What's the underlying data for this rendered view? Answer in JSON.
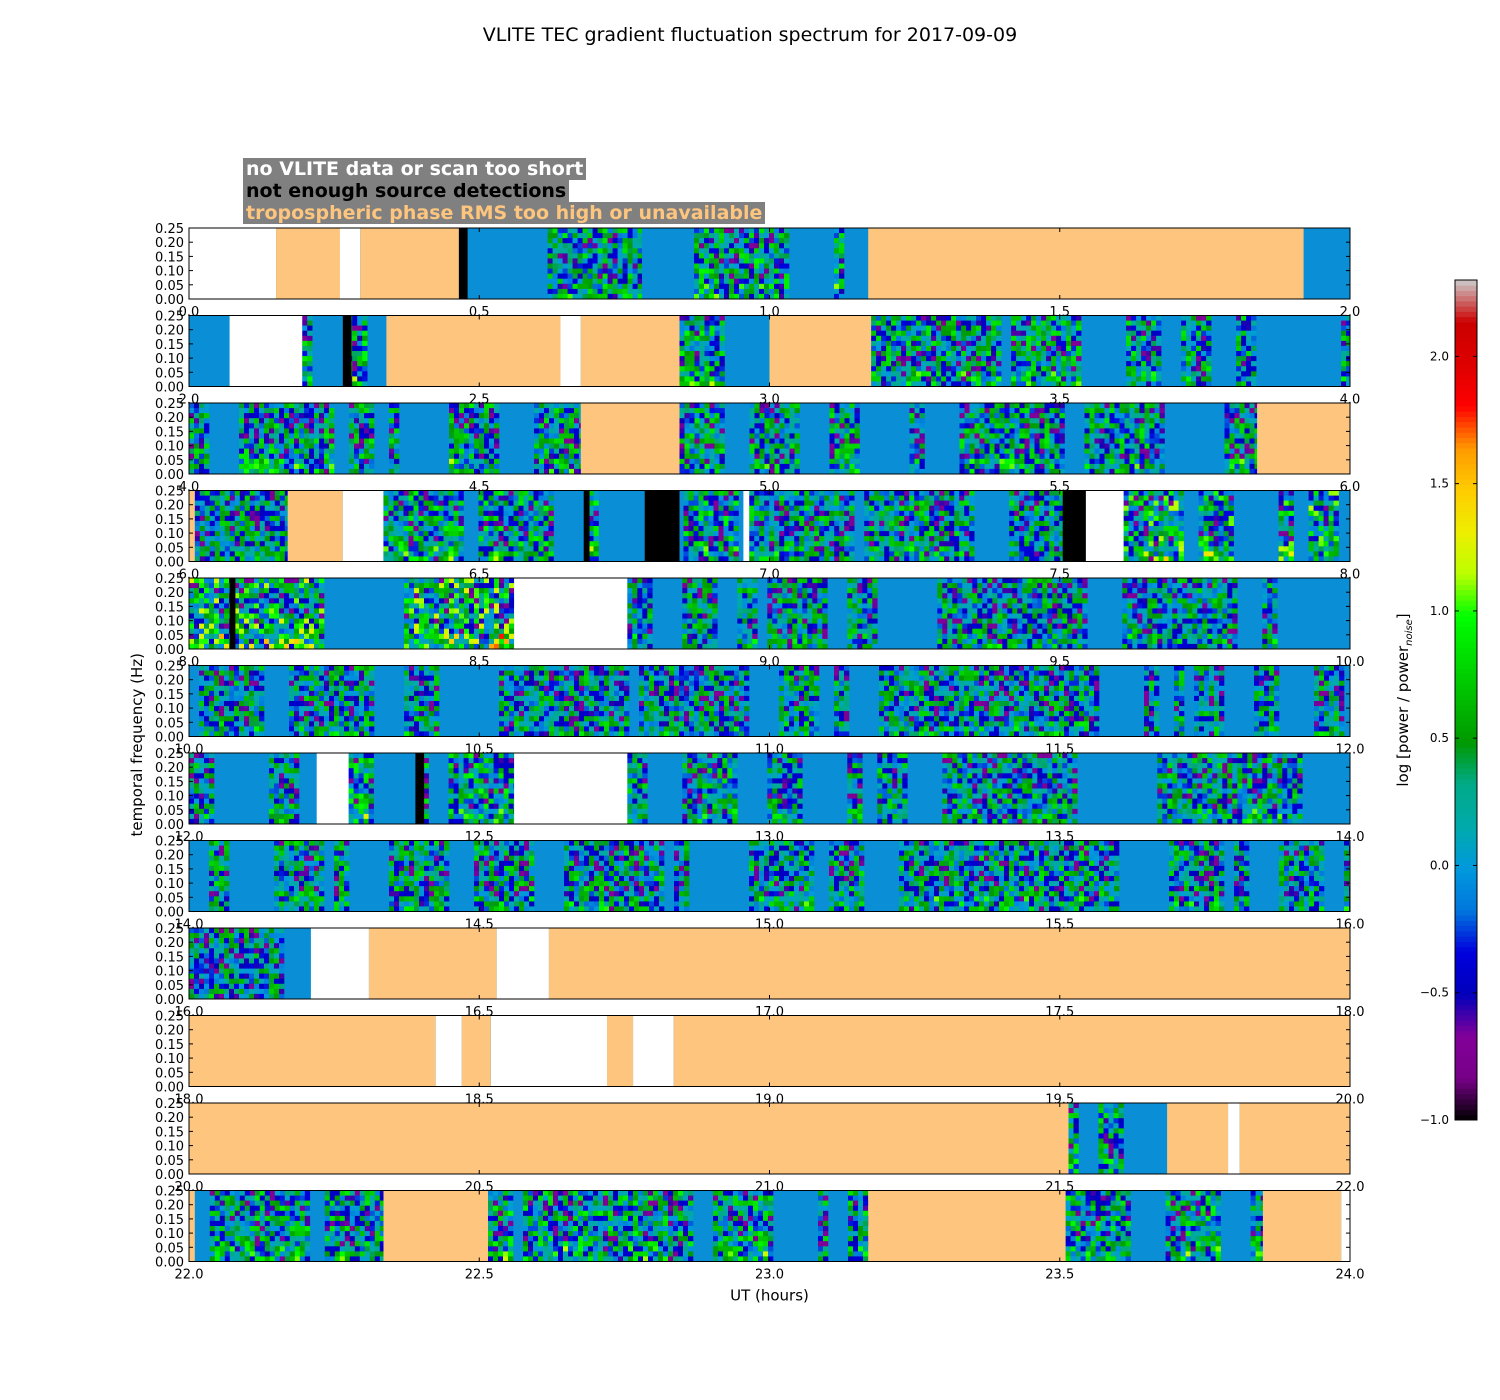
{
  "chart_data": {
    "type": "heatmap",
    "title": "VLITE TEC gradient fluctuation spectrum for 2017-09-09",
    "xlabel": "UT (hours)",
    "ylabel": "temporal frequency (Hz)",
    "colorbar_label": "log [power / power",
    "colorbar_label_subscript": "noise",
    "colorbar_label_close": "]",
    "colorbar_range": [
      -1.0,
      2.3
    ],
    "colorbar_ticks": [
      "−1.0",
      "−0.5",
      "0.0",
      "0.5",
      "1.0",
      "1.5",
      "2.0"
    ],
    "colorbar_tick_values": [
      -1.0,
      -0.5,
      0.0,
      0.5,
      1.0,
      1.5,
      2.0
    ],
    "colormap": "nipy_spectral",
    "ylim": [
      0,
      0.25
    ],
    "ytick_labels": [
      "0.00",
      "0.05",
      "0.10",
      "0.15",
      "0.20",
      "0.25"
    ],
    "ytick_values": [
      0,
      0.05,
      0.1,
      0.15,
      0.2,
      0.25
    ],
    "legend": [
      {
        "label": "no VLITE data or scan too short",
        "color": "#ffffff"
      },
      {
        "label": "not enough source detections",
        "color": "#000000"
      },
      {
        "label": "tropospheric phase RMS too high or unavailable",
        "color": "#fdc57e"
      }
    ],
    "flag_colors": {
      "none": "#ffffff",
      "nodet": "#000000",
      "tropo": "#fdc57e",
      "base": "#0a8fd6"
    },
    "panels": [
      {
        "xlim": [
          0,
          2
        ],
        "xticks": [
          "0.0",
          "0.5",
          "1.0",
          "1.5",
          "2.0"
        ],
        "flags": [
          {
            "t": "none",
            "x": [
              0,
              0.15
            ]
          },
          {
            "t": "tropo",
            "x": [
              0.15,
              0.26
            ]
          },
          {
            "t": "none",
            "x": [
              0.26,
              0.295
            ]
          },
          {
            "t": "tropo",
            "x": [
              0.295,
              0.465
            ]
          },
          {
            "t": "nodet",
            "x": [
              0.465,
              0.48
            ]
          },
          {
            "t": "tropo",
            "x": [
              1.17,
              1.92
            ]
          }
        ],
        "active": [
          [
            0.48,
            0.78,
            0.45
          ],
          [
            0.87,
            1.17,
            0.5
          ]
        ]
      },
      {
        "xlim": [
          2,
          4
        ],
        "xticks": [
          "2.0",
          "2.5",
          "3.0",
          "3.5",
          "4.0"
        ],
        "flags": [
          {
            "t": "none",
            "x": [
              2.07,
              2.195
            ]
          },
          {
            "t": "nodet",
            "x": [
              2.265,
              2.28
            ]
          },
          {
            "t": "tropo",
            "x": [
              2.34,
              2.64
            ]
          },
          {
            "t": "none",
            "x": [
              2.64,
              2.675
            ]
          },
          {
            "t": "tropo",
            "x": [
              2.675,
              2.845
            ]
          },
          {
            "t": "tropo",
            "x": [
              3.0,
              3.175
            ]
          }
        ],
        "active": [
          [
            2.195,
            2.34,
            0.55
          ],
          [
            2.845,
            3.0,
            0.5
          ],
          [
            3.175,
            4.0,
            0.45
          ]
        ]
      },
      {
        "xlim": [
          4,
          6
        ],
        "xticks": [
          "4.0",
          "4.5",
          "5.0",
          "5.5",
          "6.0"
        ],
        "flags": [
          {
            "t": "tropo",
            "x": [
              4.675,
              4.845
            ]
          },
          {
            "t": "tropo",
            "x": [
              5.84,
              6.0
            ]
          }
        ],
        "active": [
          [
            4.0,
            4.675,
            0.45
          ],
          [
            4.845,
            5.84,
            0.45
          ]
        ]
      },
      {
        "xlim": [
          6,
          8
        ],
        "xticks": [
          "6.0",
          "6.5",
          "7.0",
          "7.5",
          "8.0"
        ],
        "flags": [
          {
            "t": "tropo",
            "x": [
              6.0,
              6.01
            ]
          },
          {
            "t": "tropo",
            "x": [
              6.17,
              6.265
            ]
          },
          {
            "t": "none",
            "x": [
              6.265,
              6.335
            ]
          },
          {
            "t": "nodet",
            "x": [
              6.68,
              6.69
            ]
          },
          {
            "t": "nodet",
            "x": [
              6.785,
              6.845
            ]
          },
          {
            "t": "none",
            "x": [
              6.955,
              6.965
            ]
          },
          {
            "t": "nodet",
            "x": [
              7.505,
              7.545
            ]
          },
          {
            "t": "none",
            "x": [
              7.545,
              7.61
            ]
          }
        ],
        "active": [
          [
            6.01,
            6.17,
            0.35
          ],
          [
            6.335,
            6.955,
            0.5
          ],
          [
            6.965,
            7.505,
            0.4
          ],
          [
            7.61,
            8.0,
            0.7
          ]
        ]
      },
      {
        "xlim": [
          8,
          10
        ],
        "xticks": [
          "8.0",
          "8.5",
          "9.0",
          "9.5",
          "10.0"
        ],
        "flags": [
          {
            "t": "nodet",
            "x": [
              8.07,
              8.08
            ]
          },
          {
            "t": "none",
            "x": [
              8.56,
              8.755
            ]
          }
        ],
        "active": [
          [
            8.0,
            8.56,
            0.85
          ],
          [
            8.755,
            10.0,
            0.35
          ]
        ]
      },
      {
        "xlim": [
          10,
          12
        ],
        "xticks": [
          "10.0",
          "10.5",
          "11.0",
          "11.5",
          "12.0"
        ],
        "flags": [],
        "active": [
          [
            10.0,
            12.0,
            0.35
          ]
        ]
      },
      {
        "xlim": [
          12,
          14
        ],
        "xticks": [
          "12.0",
          "12.5",
          "13.0",
          "13.5",
          "14.0"
        ],
        "flags": [
          {
            "t": "none",
            "x": [
              12.22,
              12.275
            ]
          },
          {
            "t": "nodet",
            "x": [
              12.39,
              12.405
            ]
          },
          {
            "t": "none",
            "x": [
              12.56,
              12.755
            ]
          }
        ],
        "active": [
          [
            12.0,
            12.22,
            0.35
          ],
          [
            12.275,
            12.56,
            0.55
          ],
          [
            12.755,
            14.0,
            0.4
          ]
        ]
      },
      {
        "xlim": [
          14,
          16
        ],
        "xticks": [
          "14.0",
          "14.5",
          "15.0",
          "15.5",
          "16.0"
        ],
        "flags": [],
        "active": [
          [
            14.0,
            16.0,
            0.4
          ]
        ]
      },
      {
        "xlim": [
          16,
          18
        ],
        "xticks": [
          "16.0",
          "16.5",
          "17.0",
          "17.5",
          "18.0"
        ],
        "flags": [
          {
            "t": "none",
            "x": [
              16.21,
              16.31
            ]
          },
          {
            "t": "tropo",
            "x": [
              16.31,
              16.53
            ]
          },
          {
            "t": "none",
            "x": [
              16.53,
              16.62
            ]
          },
          {
            "t": "tropo",
            "x": [
              16.62,
              18.0
            ]
          }
        ],
        "active": [
          [
            16.0,
            16.21,
            0.3
          ]
        ]
      },
      {
        "xlim": [
          18,
          20
        ],
        "xticks": [
          "18.0",
          "18.5",
          "19.0",
          "19.5",
          "20.0"
        ],
        "flags": [
          {
            "t": "tropo",
            "x": [
              18.0,
              18.425
            ]
          },
          {
            "t": "none",
            "x": [
              18.425,
              18.47
            ]
          },
          {
            "t": "tropo",
            "x": [
              18.47,
              18.52
            ]
          },
          {
            "t": "none",
            "x": [
              18.52,
              18.72
            ]
          },
          {
            "t": "tropo",
            "x": [
              18.72,
              18.765
            ]
          },
          {
            "t": "none",
            "x": [
              18.765,
              18.835
            ]
          },
          {
            "t": "tropo",
            "x": [
              18.835,
              20.0
            ]
          }
        ],
        "active": []
      },
      {
        "xlim": [
          20,
          22
        ],
        "xticks": [
          "20.0",
          "20.5",
          "21.0",
          "21.5",
          "22.0"
        ],
        "flags": [
          {
            "t": "tropo",
            "x": [
              20.0,
              21.515
            ]
          },
          {
            "t": "tropo",
            "x": [
              21.685,
              21.79
            ]
          },
          {
            "t": "none",
            "x": [
              21.79,
              21.81
            ]
          },
          {
            "t": "tropo",
            "x": [
              21.81,
              22.0
            ]
          }
        ],
        "active": [
          [
            21.515,
            21.685,
            0.45
          ]
        ]
      },
      {
        "xlim": [
          22,
          24
        ],
        "xticks": [
          "22.0",
          "22.5",
          "23.0",
          "23.5",
          "24.0"
        ],
        "flags": [
          {
            "t": "tropo",
            "x": [
              22.0,
              22.01
            ]
          },
          {
            "t": "tropo",
            "x": [
              22.335,
              22.515
            ]
          },
          {
            "t": "tropo",
            "x": [
              23.17,
              23.51
            ]
          },
          {
            "t": "tropo",
            "x": [
              23.85,
              23.985
            ]
          },
          {
            "t": "none",
            "x": [
              23.985,
              24.0
            ]
          }
        ],
        "active": [
          [
            22.01,
            22.335,
            0.45
          ],
          [
            22.515,
            23.17,
            0.5
          ],
          [
            23.51,
            23.85,
            0.5
          ]
        ]
      }
    ]
  }
}
